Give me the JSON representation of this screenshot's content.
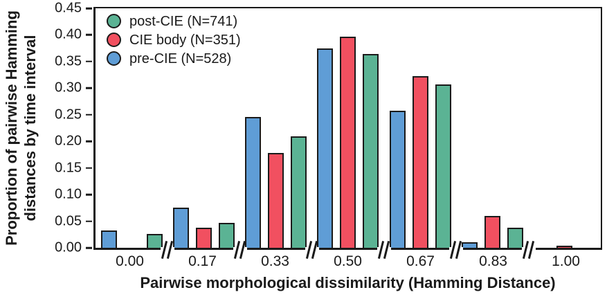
{
  "figure": {
    "y_axis_title_line1": "Proportion of pairwise Hamming",
    "y_axis_title_line2": "distances by time interval"
  },
  "colors": {
    "ink": "#1a1a1a",
    "pre_cie_blue": "#5F9DD6",
    "cie_body_red": "#F15060",
    "post_cie_green": "#5BB394",
    "background": "#ffffff"
  },
  "chart_data": {
    "type": "bar",
    "title": "",
    "xlabel": "Pairwise morphological dissimilarity (Hamming Distance)",
    "ylabel": "Proportion of pairwise Hamming distances by time interval",
    "categories": [
      "0.00",
      "0.17",
      "0.33",
      "0.50",
      "0.67",
      "0.83",
      "1.00"
    ],
    "series": [
      {
        "name": "pre-CIE (N=528)",
        "color": "#5F9DD6",
        "values": [
          0.033,
          0.076,
          0.246,
          0.374,
          0.257,
          0.01,
          0
        ]
      },
      {
        "name": "CIE body (N=351)",
        "color": "#F15060",
        "values": [
          0,
          0.038,
          0.178,
          0.397,
          0.322,
          0.06,
          0.004
        ]
      },
      {
        "name": "post-CIE (N=741)",
        "color": "#5BB394",
        "values": [
          0.026,
          0.047,
          0.21,
          0.364,
          0.307,
          0.038,
          0
        ]
      }
    ],
    "legend": {
      "position": "top-left",
      "entries": [
        {
          "label": "post-CIE (N=741)",
          "color": "#5BB394"
        },
        {
          "label": "CIE body (N=351)",
          "color": "#F15060"
        },
        {
          "label": "pre-CIE (N=528)",
          "color": "#5F9DD6"
        }
      ]
    },
    "y_ticks": [
      "0.45",
      "0.40",
      "0.35",
      "0.30",
      "0.25",
      "0.20",
      "0.15",
      "0.10",
      "0.05",
      "0.00"
    ],
    "ylim": [
      0,
      0.45
    ],
    "grid": false,
    "x_axis_breaks_between_groups": true
  }
}
